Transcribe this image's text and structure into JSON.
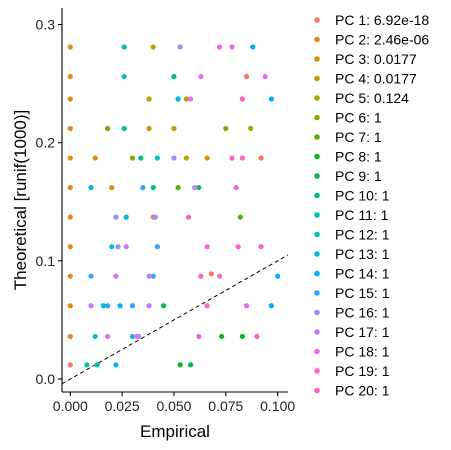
{
  "chart_data": {
    "type": "scatter",
    "title": "",
    "xlabel": "Empirical",
    "ylabel": "Theoretical [runif(1000)]",
    "xlim": [
      -0.004,
      0.105
    ],
    "ylim": [
      -0.011,
      0.314
    ],
    "x_ticks": [
      0.0,
      0.025,
      0.05,
      0.075,
      0.1
    ],
    "x_tick_labels": [
      "0.000",
      "0.025",
      "0.050",
      "0.075",
      "0.100"
    ],
    "y_ticks": [
      0.0,
      0.1,
      0.2,
      0.3
    ],
    "y_tick_labels": [
      "0.0",
      "0.1",
      "0.2",
      "0.3"
    ],
    "reference_line": {
      "type": "identity",
      "style": "dashed"
    },
    "legend_placement": "right",
    "grid": false,
    "series": [
      {
        "name": "PC 1: 6.92e-18",
        "color": "#F8766D",
        "points": [
          [
            0.0,
            0.012
          ],
          [
            0.04,
            0.137
          ],
          [
            0.068,
            0.089
          ],
          [
            0.092,
            0.187
          ],
          [
            0.085,
            0.256
          ]
        ]
      },
      {
        "name": "PC 2: 2.46e-06",
        "color": "#E7861B",
        "points": [
          [
            0.0,
            0.036
          ],
          [
            0.0,
            0.062
          ],
          [
            0.0,
            0.087
          ],
          [
            0.0,
            0.112
          ],
          [
            0.0,
            0.137
          ],
          [
            0.0,
            0.162
          ],
          [
            0.0,
            0.187
          ],
          [
            0.0,
            0.212
          ],
          [
            0.0,
            0.237
          ],
          [
            0.0,
            0.256
          ],
          [
            0.0,
            0.281
          ]
        ]
      },
      {
        "name": "PC 3: 0.0177",
        "color": "#D39200",
        "points": [
          [
            0.012,
            0.187
          ],
          [
            0.02,
            0.162
          ],
          [
            0.038,
            0.212
          ],
          [
            0.066,
            0.187
          ]
        ]
      },
      {
        "name": "PC 4: 0.0177",
        "color": "#B79F00",
        "points": [
          [
            0.04,
            0.281
          ],
          [
            0.038,
            0.237
          ],
          [
            0.05,
            0.212
          ],
          [
            0.056,
            0.187
          ]
        ]
      },
      {
        "name": "PC 5: 0.124",
        "color": "#A3A500",
        "points": [
          [
            0.056,
            0.237
          ],
          [
            0.087,
            0.212
          ]
        ]
      },
      {
        "name": "PC 6: 1",
        "color": "#7CAE00",
        "points": [
          [
            0.018,
            0.212
          ],
          [
            0.03,
            0.187
          ],
          [
            0.075,
            0.212
          ]
        ]
      },
      {
        "name": "PC 7: 1",
        "color": "#53B400",
        "points": [
          [
            0.052,
            0.162
          ],
          [
            0.082,
            0.137
          ]
        ]
      },
      {
        "name": "PC 8: 1",
        "color": "#00B81F",
        "points": [
          [
            0.053,
            0.012
          ],
          [
            0.083,
            0.036
          ],
          [
            0.073,
            0.036
          ]
        ]
      },
      {
        "name": "PC 9: 1",
        "color": "#00BB4E",
        "points": [
          [
            0.058,
            0.012
          ],
          [
            0.045,
            0.062
          ],
          [
            0.062,
            0.162
          ]
        ]
      },
      {
        "name": "PC 10: 1",
        "color": "#00BF7D",
        "points": [
          [
            0.05,
            0.256
          ],
          [
            0.04,
            0.162
          ],
          [
            0.034,
            0.187
          ]
        ]
      },
      {
        "name": "PC 11: 1",
        "color": "#00C1A3",
        "points": [
          [
            0.008,
            0.012
          ],
          [
            0.013,
            0.012
          ],
          [
            0.026,
            0.281
          ],
          [
            0.026,
            0.256
          ],
          [
            0.026,
            0.212
          ]
        ]
      },
      {
        "name": "PC 12: 1",
        "color": "#00BFC4",
        "points": [
          [
            0.012,
            0.036
          ],
          [
            0.016,
            0.062
          ],
          [
            0.022,
            0.087
          ],
          [
            0.027,
            0.137
          ],
          [
            0.042,
            0.187
          ]
        ]
      },
      {
        "name": "PC 13: 1",
        "color": "#00BAE0",
        "points": [
          [
            0.01,
            0.162
          ],
          [
            0.02,
            0.112
          ],
          [
            0.024,
            0.062
          ],
          [
            0.03,
            0.036
          ],
          [
            0.052,
            0.237
          ]
        ]
      },
      {
        "name": "PC 14: 1",
        "color": "#00B0F6",
        "points": [
          [
            0.022,
            0.012
          ],
          [
            0.097,
            0.062
          ],
          [
            0.088,
            0.281
          ],
          [
            0.097,
            0.237
          ],
          [
            0.1,
            0.087
          ]
        ]
      },
      {
        "name": "PC 15: 1",
        "color": "#35A2FF",
        "points": [
          [
            0.01,
            0.087
          ],
          [
            0.018,
            0.062
          ],
          [
            0.03,
            0.062
          ],
          [
            0.04,
            0.087
          ],
          [
            0.042,
            0.112
          ],
          [
            0.035,
            0.162
          ]
        ]
      },
      {
        "name": "PC 16: 1",
        "color": "#9590FF",
        "points": [
          [
            0.022,
            0.137
          ],
          [
            0.023,
            0.112
          ],
          [
            0.033,
            0.036
          ],
          [
            0.041,
            0.137
          ],
          [
            0.053,
            0.281
          ],
          [
            0.05,
            0.187
          ]
        ]
      },
      {
        "name": "PC 17: 1",
        "color": "#C77CFF",
        "points": [
          [
            0.01,
            0.062
          ],
          [
            0.022,
            0.087
          ],
          [
            0.027,
            0.112
          ],
          [
            0.038,
            0.087
          ],
          [
            0.038,
            0.062
          ],
          [
            0.06,
            0.162
          ]
        ]
      },
      {
        "name": "PC 18: 1",
        "color": "#E76BF3",
        "points": [
          [
            0.018,
            0.036
          ],
          [
            0.032,
            0.036
          ],
          [
            0.058,
            0.237
          ],
          [
            0.063,
            0.256
          ],
          [
            0.078,
            0.281
          ],
          [
            0.094,
            0.256
          ],
          [
            0.085,
            0.062
          ]
        ]
      },
      {
        "name": "PC 19: 1",
        "color": "#FA62DB",
        "points": [
          [
            0.072,
            0.281
          ],
          [
            0.08,
            0.162
          ],
          [
            0.072,
            0.087
          ],
          [
            0.066,
            0.112
          ],
          [
            0.063,
            0.087
          ],
          [
            0.062,
            0.036
          ],
          [
            0.092,
            0.112
          ]
        ]
      },
      {
        "name": "PC 20: 1",
        "color": "#FF62BC",
        "points": [
          [
            0.057,
            0.137
          ],
          [
            0.066,
            0.062
          ],
          [
            0.078,
            0.187
          ],
          [
            0.083,
            0.187
          ],
          [
            0.09,
            0.036
          ],
          [
            0.083,
            0.237
          ],
          [
            0.081,
            0.112
          ]
        ]
      }
    ]
  }
}
